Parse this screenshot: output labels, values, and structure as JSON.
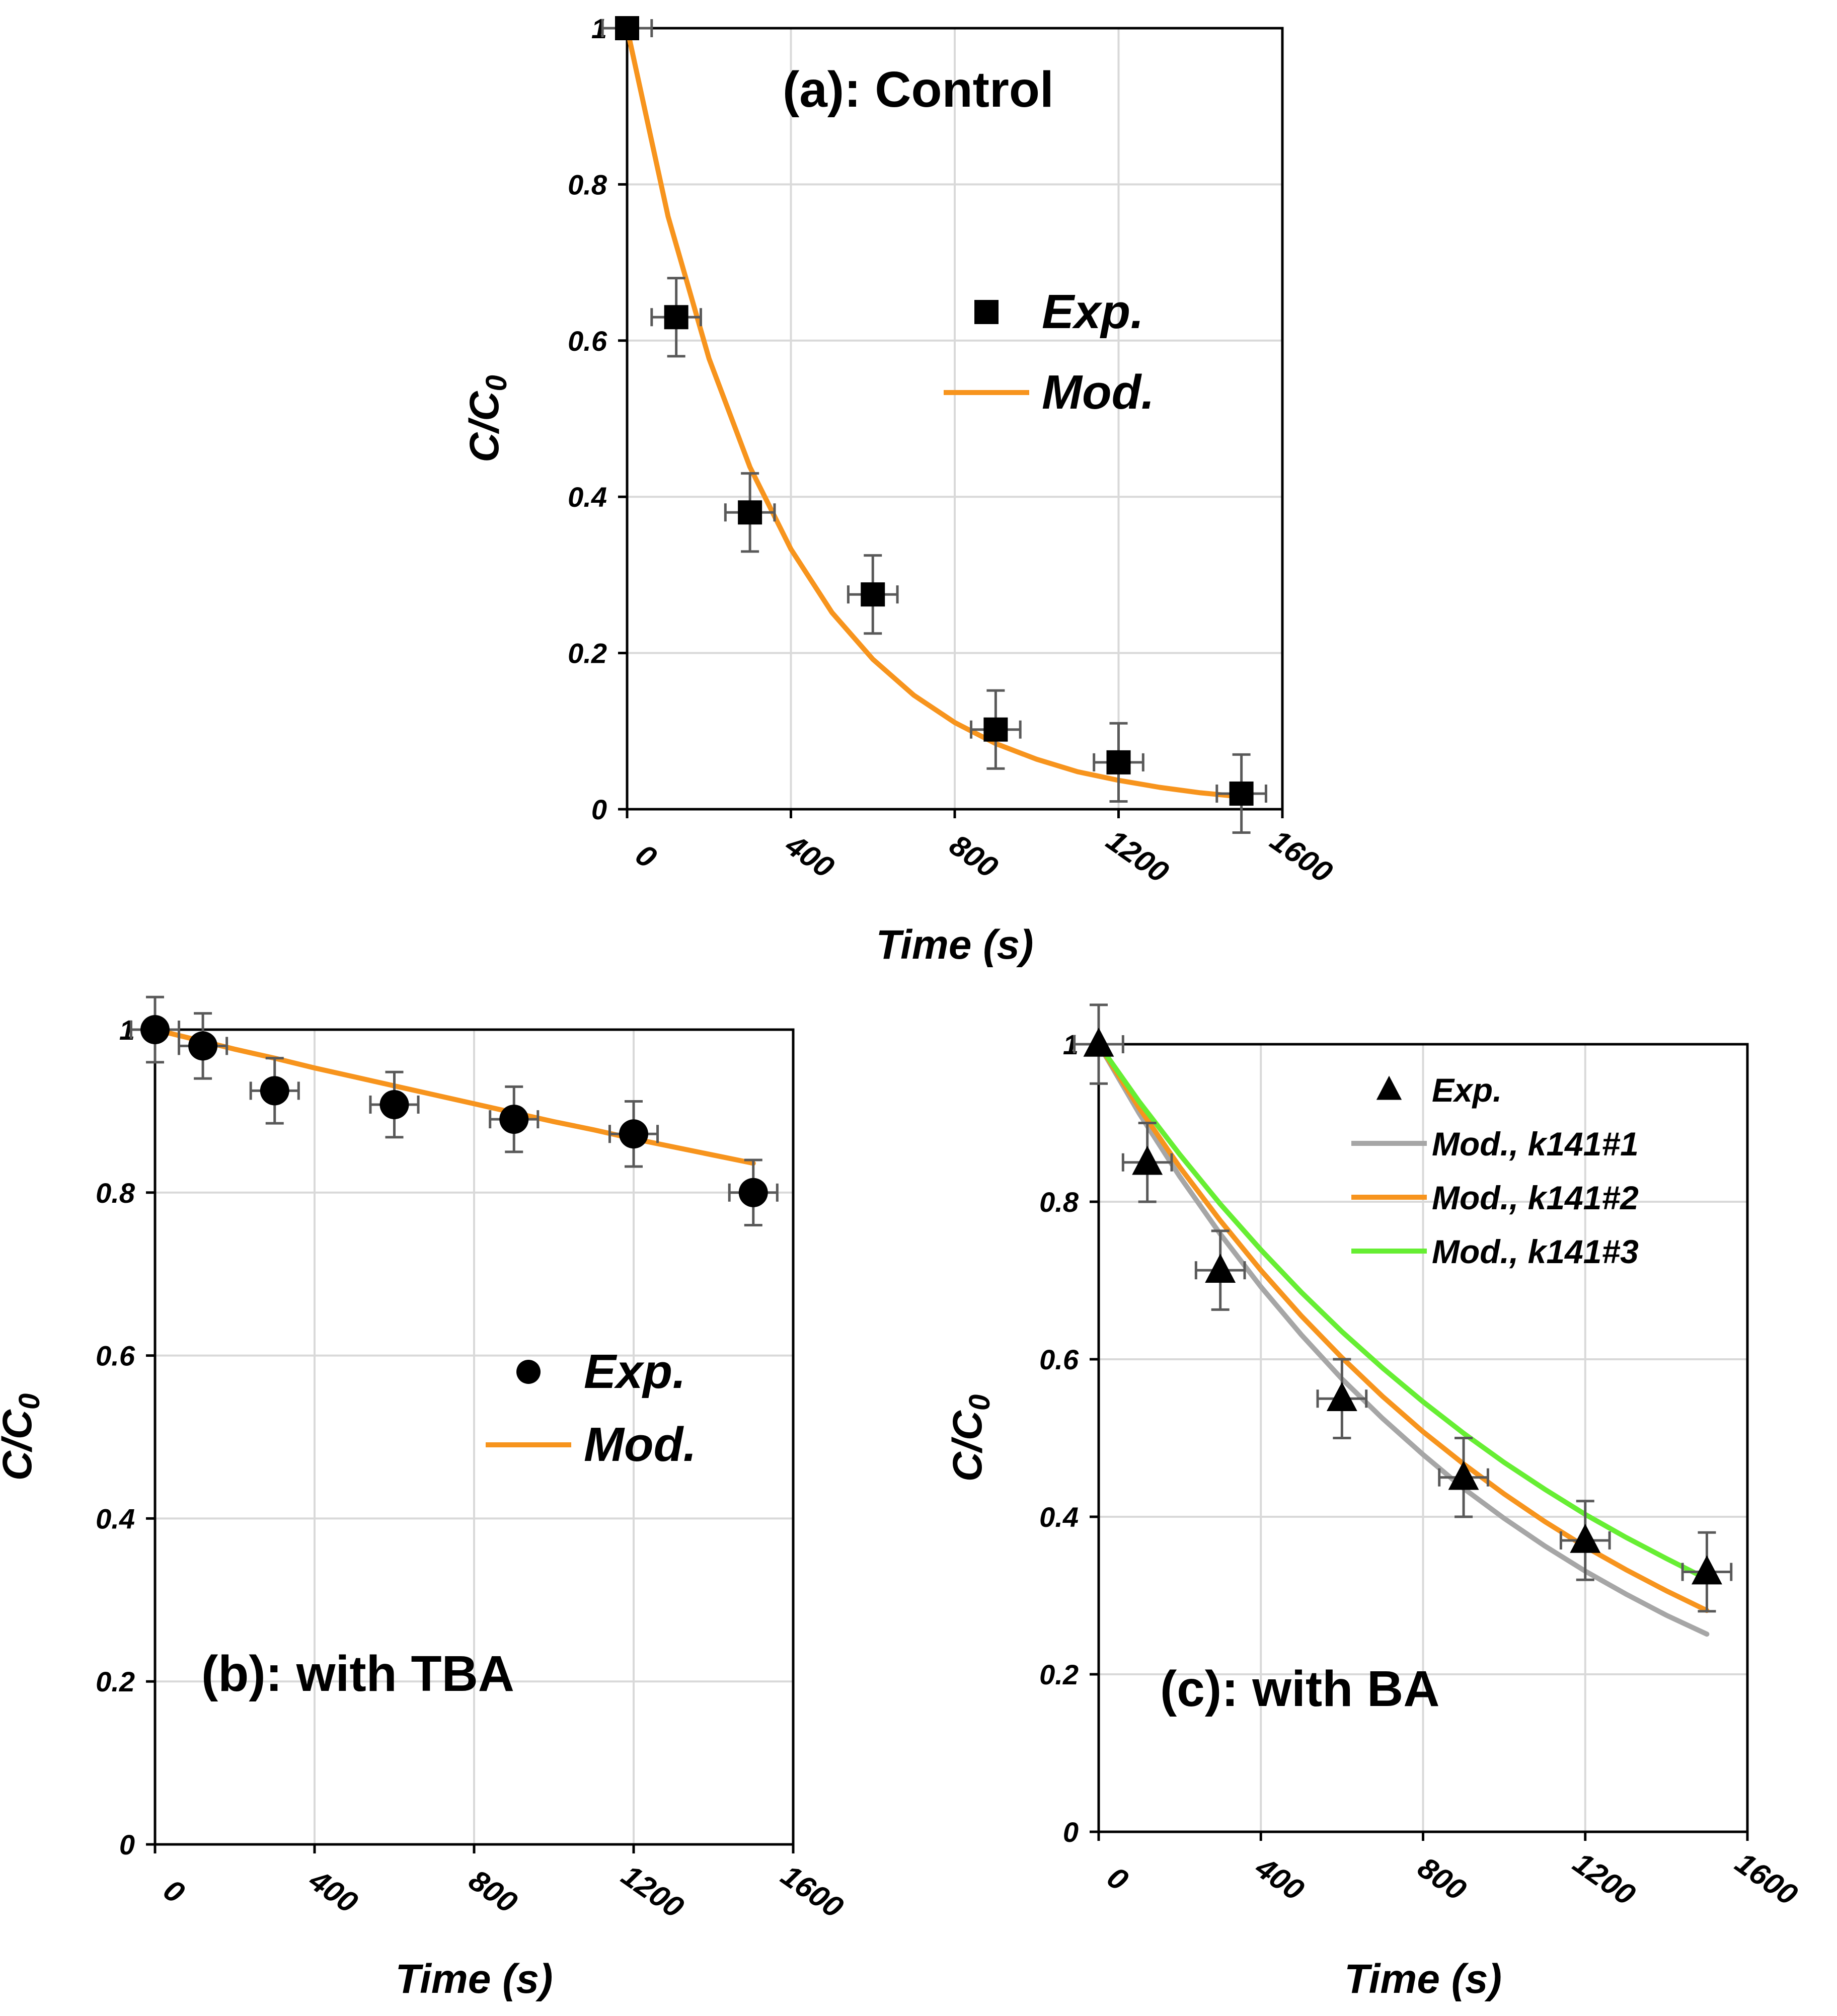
{
  "chart_data": [
    {
      "id": "a",
      "type": "scatter",
      "title": "(a): Control",
      "xlabel": "Time (s)",
      "ylabel": "C/C0",
      "xlim": [
        0,
        1600
      ],
      "ylim": [
        0,
        1
      ],
      "xticks": [
        "0",
        "400",
        "800",
        "1200",
        "1600"
      ],
      "yticks": [
        "0",
        "0.2",
        "0.4",
        "0.6",
        "0.8",
        "1"
      ],
      "grid": true,
      "legend_position": "right-middle",
      "legend_size": "large",
      "series": [
        {
          "name": "Exp.",
          "kind": "markers",
          "marker": "square",
          "color": "#000000",
          "x": [
            0,
            120,
            300,
            600,
            900,
            1200,
            1500
          ],
          "y": [
            1.0,
            0.63,
            0.38,
            0.275,
            0.102,
            0.06,
            0.02
          ],
          "yerr": [
            0.0,
            0.05,
            0.05,
            0.05,
            0.05,
            0.05,
            0.05
          ],
          "xerr": [
            60,
            60,
            60,
            60,
            60,
            60,
            60
          ]
        },
        {
          "name": "Mod.",
          "kind": "line",
          "color": "#f7941d",
          "x": [
            0,
            100,
            200,
            300,
            400,
            500,
            600,
            700,
            800,
            900,
            1000,
            1100,
            1200,
            1300,
            1400,
            1500
          ],
          "y": [
            1.0,
            0.759,
            0.577,
            0.438,
            0.333,
            0.252,
            0.192,
            0.146,
            0.111,
            0.084,
            0.064,
            0.048,
            0.037,
            0.028,
            0.021,
            0.016
          ]
        }
      ]
    },
    {
      "id": "b",
      "type": "scatter",
      "title": "(b): with TBA",
      "xlabel": "Time (s)",
      "ylabel": "C/C0",
      "xlim": [
        0,
        1600
      ],
      "ylim": [
        0,
        1
      ],
      "xticks": [
        "0",
        "400",
        "800",
        "1200",
        "1600"
      ],
      "yticks": [
        "0",
        "0.2",
        "0.4",
        "0.6",
        "0.8",
        "1"
      ],
      "grid": true,
      "legend_position": "right-middle",
      "legend_size": "large",
      "series": [
        {
          "name": "Exp.",
          "kind": "markers",
          "marker": "circle",
          "color": "#000000",
          "x": [
            0,
            120,
            300,
            600,
            900,
            1200,
            1500
          ],
          "y": [
            1.0,
            0.98,
            0.925,
            0.908,
            0.89,
            0.872,
            0.8
          ],
          "yerr": [
            0.04,
            0.04,
            0.04,
            0.04,
            0.04,
            0.04,
            0.04
          ],
          "xerr": [
            60,
            60,
            60,
            60,
            60,
            60,
            60
          ]
        },
        {
          "name": "Mod.",
          "kind": "line",
          "color": "#f7941d",
          "x": [
            0,
            100,
            200,
            300,
            400,
            500,
            600,
            700,
            800,
            900,
            1000,
            1100,
            1200,
            1300,
            1400,
            1500
          ],
          "y": [
            1.0,
            0.988,
            0.976,
            0.965,
            0.953,
            0.942,
            0.931,
            0.92,
            0.909,
            0.898,
            0.887,
            0.877,
            0.866,
            0.856,
            0.846,
            0.836
          ]
        }
      ]
    },
    {
      "id": "c",
      "type": "scatter",
      "title": "(c): with BA",
      "xlabel": "Time (s)",
      "ylabel": "C/C0",
      "xlim": [
        0,
        1600
      ],
      "ylim": [
        0,
        1
      ],
      "xticks": [
        "0",
        "400",
        "800",
        "1200",
        "1600"
      ],
      "yticks": [
        "0",
        "0.2",
        "0.4",
        "0.6",
        "0.8",
        "1"
      ],
      "grid": true,
      "legend_position": "top-right",
      "legend_size": "small",
      "series": [
        {
          "name": "Exp.",
          "kind": "markers",
          "marker": "triangle",
          "color": "#000000",
          "x": [
            0,
            120,
            300,
            600,
            900,
            1200,
            1500
          ],
          "y": [
            1.0,
            0.85,
            0.713,
            0.55,
            0.45,
            0.37,
            0.33
          ],
          "yerr": [
            0.05,
            0.05,
            0.05,
            0.05,
            0.05,
            0.05,
            0.05
          ],
          "xerr": [
            60,
            60,
            60,
            60,
            60,
            60,
            60
          ]
        },
        {
          "name": "Mod., k141#1",
          "kind": "line",
          "color": "#a6a6a6",
          "x": [
            0,
            100,
            200,
            300,
            400,
            500,
            600,
            700,
            800,
            900,
            1000,
            1100,
            1200,
            1300,
            1400,
            1500
          ],
          "y": [
            1.0,
            0.912,
            0.832,
            0.759,
            0.692,
            0.631,
            0.575,
            0.525,
            0.479,
            0.436,
            0.398,
            0.363,
            0.331,
            0.302,
            0.275,
            0.251
          ]
        },
        {
          "name": "Mod., k141#2",
          "kind": "line",
          "color": "#f7941d",
          "x": [
            0,
            100,
            200,
            300,
            400,
            500,
            600,
            700,
            800,
            900,
            1000,
            1100,
            1200,
            1300,
            1400,
            1500
          ],
          "y": [
            1.0,
            0.919,
            0.844,
            0.776,
            0.713,
            0.655,
            0.602,
            0.553,
            0.508,
            0.467,
            0.429,
            0.394,
            0.362,
            0.333,
            0.306,
            0.281
          ]
        },
        {
          "name": "Mod., k141#3",
          "kind": "line",
          "color": "#66ee33",
          "x": [
            0,
            100,
            200,
            300,
            400,
            500,
            600,
            700,
            800,
            900,
            1000,
            1100,
            1200,
            1300,
            1400,
            1500
          ],
          "y": [
            1.0,
            0.927,
            0.86,
            0.797,
            0.739,
            0.685,
            0.635,
            0.589,
            0.546,
            0.506,
            0.469,
            0.435,
            0.403,
            0.374,
            0.347,
            0.321
          ]
        }
      ]
    }
  ]
}
